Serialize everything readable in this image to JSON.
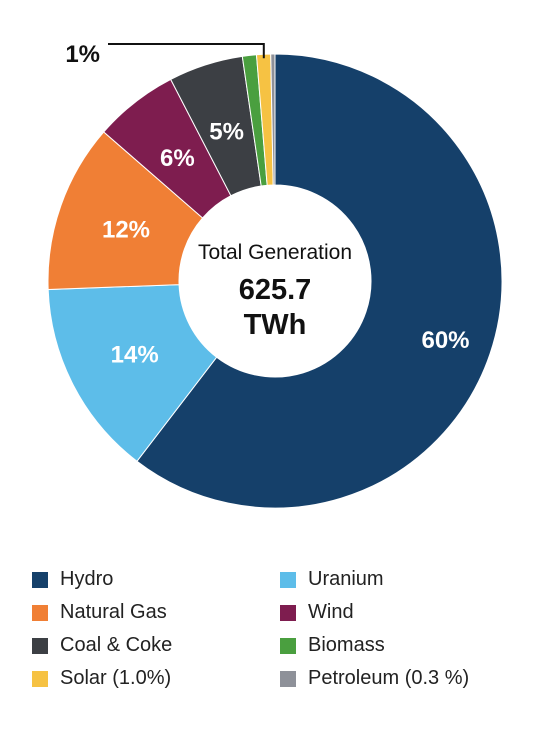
{
  "chart_data": {
    "type": "pie",
    "donut": true,
    "start_angle_deg": 0,
    "direction": "clockwise",
    "center": {
      "subtitle": "Total Generation",
      "value": "625.7",
      "unit": "TWh"
    },
    "slices": [
      {
        "name": "Hydro",
        "value": 60.4,
        "label": "60%",
        "color": "#15406a"
      },
      {
        "name": "Uranium",
        "value": 14.0,
        "label": "14%",
        "color": "#5dbde9"
      },
      {
        "name": "Natural Gas",
        "value": 12.0,
        "label": "12%",
        "color": "#f07f35"
      },
      {
        "name": "Wind",
        "value": 6.0,
        "label": "6%",
        "color": "#7e1d4f"
      },
      {
        "name": "Coal & Coke",
        "value": 5.3,
        "label": "5%",
        "color": "#3c3f44"
      },
      {
        "name": "Biomass",
        "value": 1.0,
        "label": "",
        "color": "#4a9f3f"
      },
      {
        "name": "Solar",
        "value": 1.0,
        "label": "",
        "color": "#f6c243"
      },
      {
        "name": "Petroleum",
        "value": 0.3,
        "label": "",
        "color": "#8e9199"
      }
    ],
    "callout": {
      "text": "1%",
      "slice": "Solar"
    },
    "legend": {
      "placement": "bottom",
      "items": [
        {
          "label": "Hydro",
          "color": "#15406a"
        },
        {
          "label": "Uranium",
          "color": "#5dbde9"
        },
        {
          "label": "Natural Gas",
          "color": "#f07f35"
        },
        {
          "label": "Wind",
          "color": "#7e1d4f"
        },
        {
          "label": "Coal & Coke",
          "color": "#3c3f44"
        },
        {
          "label": "Biomass",
          "color": "#4a9f3f"
        },
        {
          "label": "Solar (1.0%)",
          "color": "#f6c243"
        },
        {
          "label": "Petroleum (0.3 %)",
          "color": "#8e9199"
        }
      ]
    }
  }
}
